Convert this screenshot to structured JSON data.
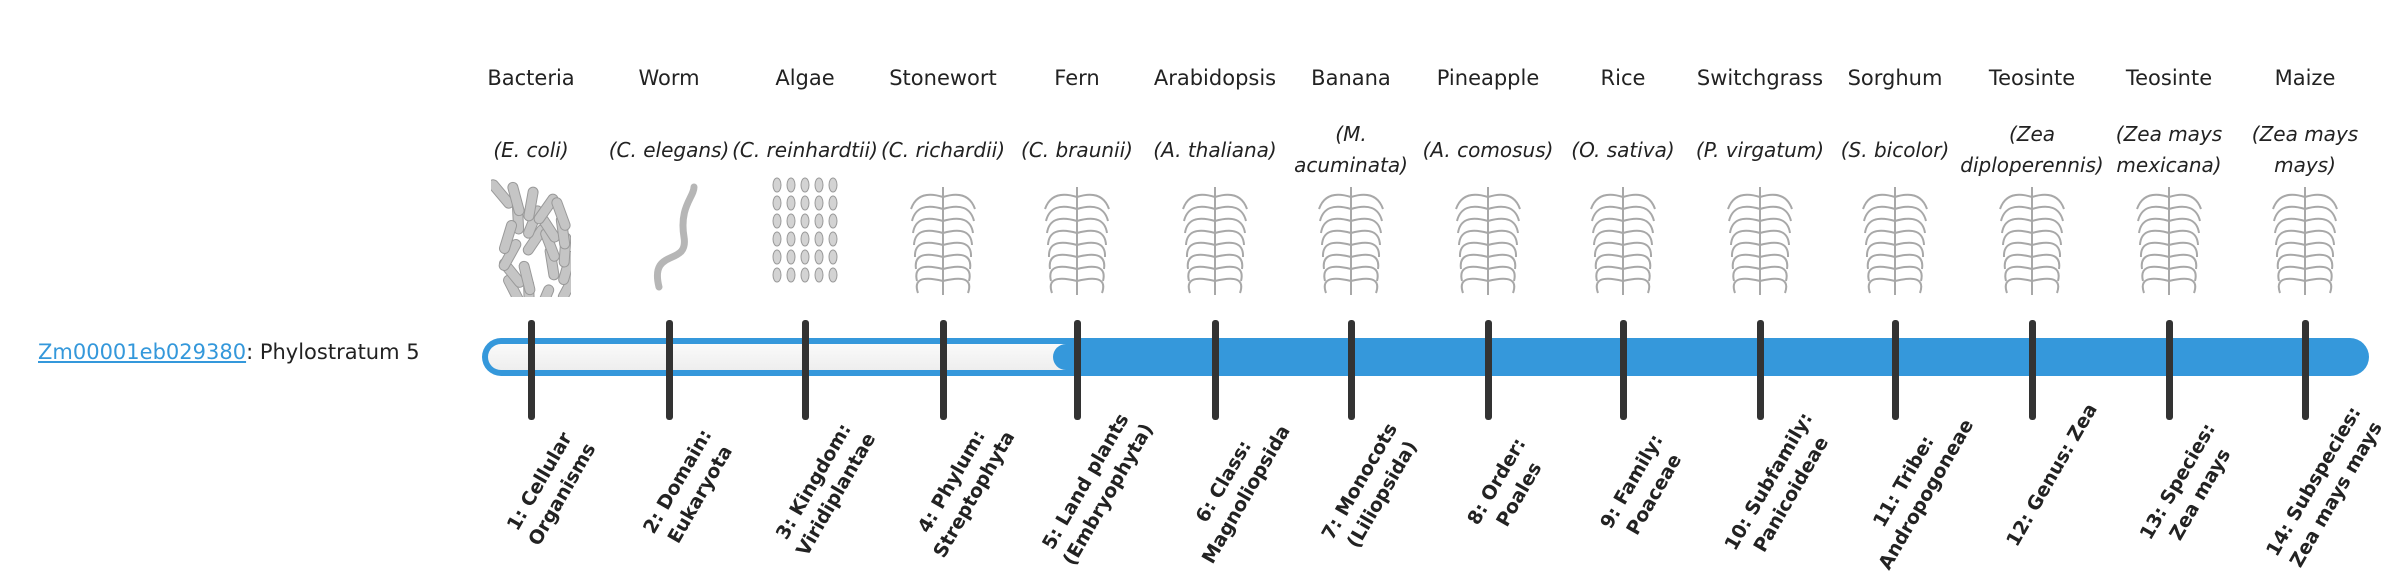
{
  "gene": {
    "id": "Zm00001eb029380",
    "suffix": ": Phylostratum 5"
  },
  "current_stratum": 5,
  "colors": {
    "bar": "#3598db",
    "link": "#3498db",
    "tick": "#333333",
    "unfilled": "#f3f3f3"
  },
  "organisms": [
    {
      "name": "Bacteria",
      "sci": "(E. coli)",
      "icon": "bacteria-illustration",
      "label": "1: Cellular Organisms"
    },
    {
      "name": "Worm",
      "sci": "(C. elegans)",
      "icon": "worm-illustration",
      "label": "2: Domain: Eukaryota"
    },
    {
      "name": "Algae",
      "sci": "(C. reinhardtii)",
      "icon": "algae-illustration",
      "label": "3: Kingdom: Viridiplantae"
    },
    {
      "name": "Stonewort",
      "sci": "(C. richardii)",
      "icon": "stonewort-illustration",
      "label": "4: Phylum: Streptophyta"
    },
    {
      "name": "Fern",
      "sci": "(C. braunii)",
      "icon": "fern-illustration",
      "label": "5: Land plants (Embryophyta)"
    },
    {
      "name": "Arabidopsis",
      "sci": "(A. thaliana)",
      "icon": "arabidopsis-illustration",
      "label": "6: Class: Magnoliopsida"
    },
    {
      "name": "Banana",
      "sci": "(M. acuminata)",
      "icon": "banana-illustration",
      "label": "7: Monocots (Liliopsida)"
    },
    {
      "name": "Pineapple",
      "sci": "(A. comosus)",
      "icon": "pineapple-illustration",
      "label": "8: Order: Poales"
    },
    {
      "name": "Rice",
      "sci": "(O. sativa)",
      "icon": "rice-illustration",
      "label": "9: Family: Poaceae"
    },
    {
      "name": "Switchgrass",
      "sci": "(P. virgatum)",
      "icon": "switchgrass-illustration",
      "label": "10: Subfamily: Panicoideae"
    },
    {
      "name": "Sorghum",
      "sci": "(S. bicolor)",
      "icon": "sorghum-illustration",
      "label": "11: Tribe: Andropogoneae"
    },
    {
      "name": "Teosinte",
      "sci": "(Zea diploperennis)",
      "icon": "teosinte-illustration",
      "label": "12: Genus: Zea"
    },
    {
      "name": "Teosinte",
      "sci": "(Zea mays mexicana)",
      "icon": "teosinte-illustration",
      "label": "13: Species: Zea mays"
    },
    {
      "name": "Maize",
      "sci": "(Zea mays mays)",
      "icon": "maize-illustration",
      "label": "14: Subspecies: Zea mays mays"
    }
  ]
}
